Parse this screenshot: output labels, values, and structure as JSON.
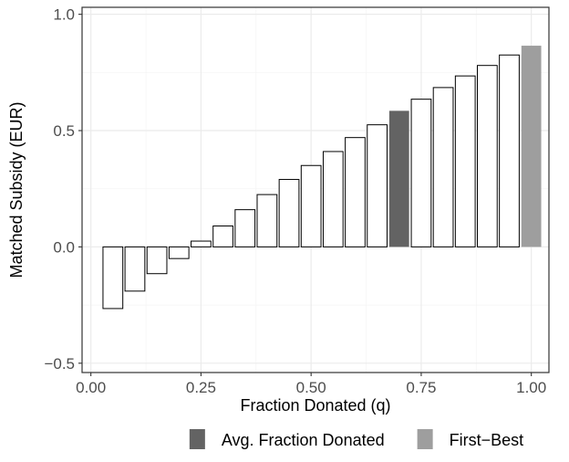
{
  "chart_data": {
    "type": "bar",
    "title": "",
    "xlabel": "Fraction Donated (q)",
    "ylabel": "Matched Subsidy (EUR)",
    "xlim": [
      -0.02,
      1.04
    ],
    "ylim": [
      -0.54,
      1.03
    ],
    "x_ticks": [
      {
        "value": 0.0,
        "label": "0.00"
      },
      {
        "value": 0.25,
        "label": "0.25"
      },
      {
        "value": 0.5,
        "label": "0.50"
      },
      {
        "value": 0.75,
        "label": "0.75"
      },
      {
        "value": 1.0,
        "label": "1.00"
      }
    ],
    "y_ticks": [
      {
        "value": -0.5,
        "label": "−0.5"
      },
      {
        "value": 0.0,
        "label": "0.0"
      },
      {
        "value": 0.5,
        "label": "0.5"
      },
      {
        "value": 1.0,
        "label": "1.0"
      }
    ],
    "grid": true,
    "legend_position": "bottom",
    "bar_width": 0.045,
    "bars": [
      {
        "x": 0.05,
        "value": -0.265,
        "group": "normal"
      },
      {
        "x": 0.1,
        "value": -0.19,
        "group": "normal"
      },
      {
        "x": 0.15,
        "value": -0.115,
        "group": "normal"
      },
      {
        "x": 0.2,
        "value": -0.05,
        "group": "normal"
      },
      {
        "x": 0.25,
        "value": 0.025,
        "group": "normal"
      },
      {
        "x": 0.3,
        "value": 0.09,
        "group": "normal"
      },
      {
        "x": 0.35,
        "value": 0.16,
        "group": "normal"
      },
      {
        "x": 0.4,
        "value": 0.225,
        "group": "normal"
      },
      {
        "x": 0.45,
        "value": 0.29,
        "group": "normal"
      },
      {
        "x": 0.5,
        "value": 0.35,
        "group": "normal"
      },
      {
        "x": 0.55,
        "value": 0.41,
        "group": "normal"
      },
      {
        "x": 0.6,
        "value": 0.47,
        "group": "normal"
      },
      {
        "x": 0.65,
        "value": 0.525,
        "group": "normal"
      },
      {
        "x": 0.7,
        "value": 0.585,
        "group": "avg"
      },
      {
        "x": 0.75,
        "value": 0.635,
        "group": "normal"
      },
      {
        "x": 0.8,
        "value": 0.685,
        "group": "normal"
      },
      {
        "x": 0.85,
        "value": 0.735,
        "group": "normal"
      },
      {
        "x": 0.9,
        "value": 0.78,
        "group": "normal"
      },
      {
        "x": 0.95,
        "value": 0.825,
        "group": "normal"
      },
      {
        "x": 1.0,
        "value": 0.865,
        "group": "firstbest"
      }
    ],
    "colors": {
      "normal_fill": "#ffffff",
      "normal_stroke": "#000000",
      "avg": "#636363",
      "firstbest": "#9e9e9e",
      "panel_border": "#333333",
      "grid_major": "#ebebeb",
      "grid_minor": "#f5f5f5"
    },
    "legend": [
      {
        "label": "Avg. Fraction Donated",
        "color": "#636363"
      },
      {
        "label": "First−Best",
        "color": "#9e9e9e"
      }
    ]
  }
}
